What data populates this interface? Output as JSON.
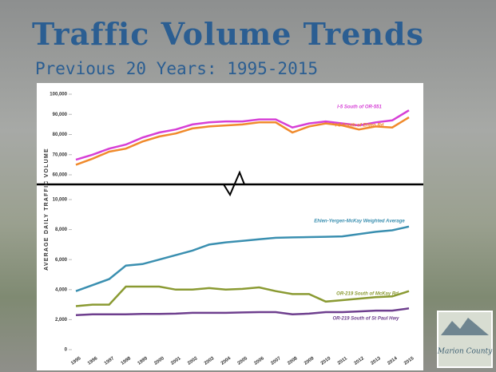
{
  "slide": {
    "title": "Traffic Volume Trends",
    "subtitle": "Previous 20 Years: 1995-2015",
    "logo": "Marion County"
  },
  "chart_data": [
    {
      "type": "line",
      "y_label": "AVERAGE DAILY TRAFFIC VOLUME",
      "x": [
        1995,
        1996,
        1997,
        1998,
        1999,
        2000,
        2001,
        2002,
        2003,
        2004,
        2005,
        2006,
        2007,
        2008,
        2009,
        2010,
        2011,
        2012,
        2013,
        2014,
        2015
      ],
      "ylim": [
        60000,
        100000
      ],
      "yticks": [
        {
          "value": 60000,
          "label": "60,000"
        },
        {
          "value": 70000,
          "label": "70,000"
        },
        {
          "value": 80000,
          "label": "80,000"
        },
        {
          "value": 90000,
          "label": "90,000"
        },
        {
          "value": 100000,
          "label": "100,000"
        }
      ],
      "series": [
        {
          "name": "I-5 South of OR-551",
          "color": "#d63fd6",
          "values": [
            67500,
            70000,
            73000,
            75000,
            78500,
            81000,
            82500,
            85000,
            86000,
            86500,
            86500,
            87500,
            87500,
            83500,
            85500,
            86500,
            85500,
            84500,
            86000,
            87000,
            92000
          ]
        },
        {
          "name": "I-5 South of Ehlen Rd",
          "color": "#f08a2c",
          "values": [
            65000,
            68000,
            71500,
            73000,
            76500,
            79000,
            80500,
            83000,
            84000,
            84500,
            85000,
            86000,
            86000,
            81000,
            84000,
            85500,
            84500,
            82500,
            84000,
            83500,
            88500
          ]
        }
      ]
    },
    {
      "type": "line",
      "x": [
        1995,
        1996,
        1997,
        1998,
        1999,
        2000,
        2001,
        2002,
        2003,
        2004,
        2005,
        2006,
        2007,
        2008,
        2009,
        2010,
        2011,
        2012,
        2013,
        2014,
        2015
      ],
      "ylim": [
        0,
        10000
      ],
      "yticks": [
        0,
        {
          "value": 2000,
          "label": "2,000"
        },
        {
          "value": 4000,
          "label": "4,000"
        },
        {
          "value": 6000,
          "label": "6,000"
        },
        {
          "value": 8000,
          "label": "8,000"
        },
        {
          "value": 10000,
          "label": "10,000"
        }
      ],
      "series": [
        {
          "name": "Ehlen-Yergen-McKay Weighted Average",
          "color": "#3a8fb0",
          "values": [
            3900,
            4300,
            4700,
            5600,
            5700,
            6000,
            6300,
            6600,
            7000,
            7150,
            7250,
            7350,
            7450,
            7480,
            7500,
            7520,
            7550,
            7700,
            7850,
            7950,
            8200
          ]
        },
        {
          "name": "OR-219 South of McKay Rd",
          "color": "#8a9a32",
          "values": [
            2900,
            3000,
            3000,
            4200,
            4200,
            4200,
            4000,
            4000,
            4100,
            4000,
            4050,
            4150,
            3900,
            3700,
            3700,
            3200,
            3300,
            3400,
            3500,
            3550,
            3900
          ]
        },
        {
          "name": "OR-219 South of St Paul Hwy",
          "color": "#6e3f8e",
          "values": [
            2300,
            2350,
            2350,
            2350,
            2380,
            2380,
            2400,
            2450,
            2450,
            2450,
            2480,
            2500,
            2500,
            2350,
            2400,
            2500,
            2500,
            2550,
            2600,
            2600,
            2750
          ]
        }
      ]
    }
  ]
}
